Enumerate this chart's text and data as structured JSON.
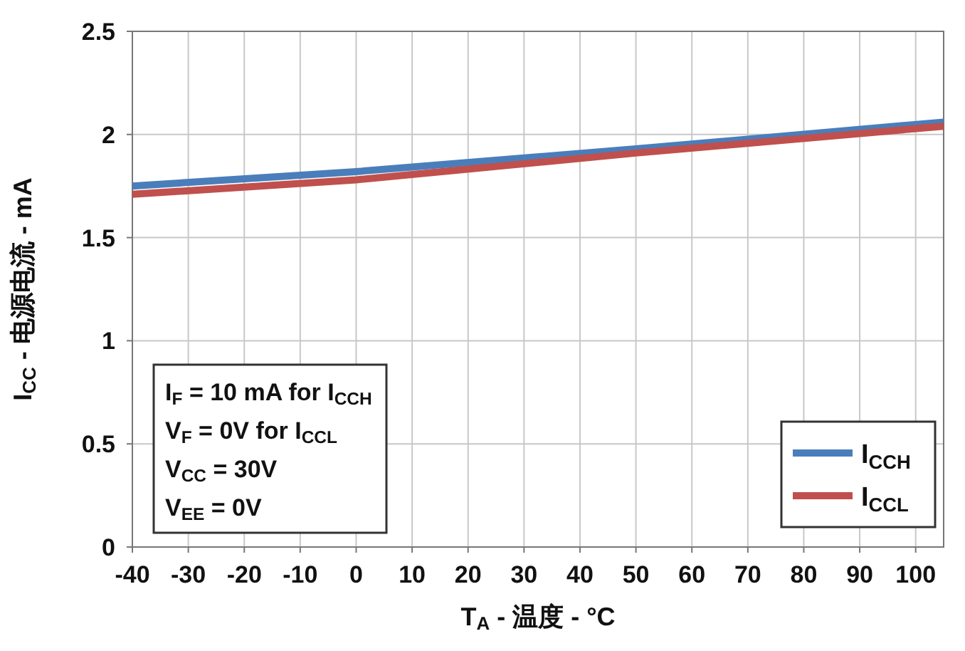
{
  "chart_data": {
    "type": "line",
    "xlabel": "T$_{A}$ - 温度 - °C",
    "ylabel": "I$_{CC}$ - 电源电流 - mA",
    "x": [
      -40,
      0,
      50,
      105
    ],
    "series": [
      {
        "name": "I$_{CCH}$",
        "color": "#4a7ebb",
        "values": [
          1.75,
          1.82,
          1.93,
          2.06
        ]
      },
      {
        "name": "I$_{CCL}$",
        "color": "#c0504d",
        "values": [
          1.71,
          1.78,
          1.91,
          2.04
        ]
      }
    ],
    "xlim": [
      -40,
      105
    ],
    "xticks": [
      -40,
      -30,
      -20,
      -10,
      0,
      10,
      20,
      30,
      40,
      50,
      60,
      70,
      80,
      90,
      100
    ],
    "ylim": [
      0,
      2.5
    ],
    "yticks": [
      0,
      0.5,
      1,
      1.5,
      2,
      2.5
    ],
    "grid": true,
    "legend": "bottom right",
    "marker": "none",
    "line_style": "solid",
    "annotations": [
      "I$_{F}$  = 10 mA for I$_{CCH}$",
      "V$_{F}$ = 0V for I$_{CCL}$",
      "V$_{CC}$ = 30V",
      "V$_{EE}$ = 0V"
    ]
  }
}
